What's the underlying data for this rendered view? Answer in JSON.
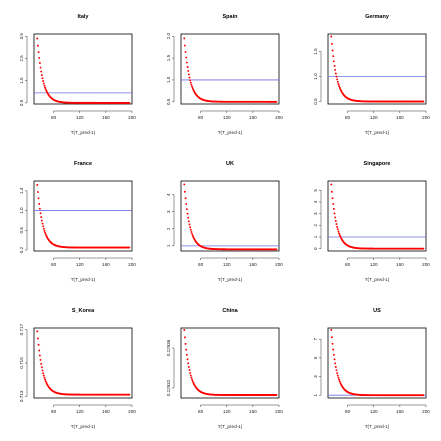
{
  "colors": {
    "points": "#ff0000",
    "hline": "#6f6fe8",
    "frame": "#000000"
  },
  "chart_data": [
    {
      "type": "scatter",
      "title": "Italy",
      "xlabel": "T(T_pred-1)",
      "xlim": [
        50,
        200
      ],
      "xticks": [
        80,
        120,
        160,
        200
      ],
      "ylim": [
        0.45,
        3.6
      ],
      "yticks": [
        0.5,
        1.5,
        2.5,
        3.5
      ],
      "ytick_labels": [
        "0.5",
        "1.5",
        "2.5",
        "3.5"
      ],
      "hline": 0.95,
      "x_start": 55,
      "x_end": 196,
      "y_start": 3.4,
      "y_end": 0.5,
      "decay": 0.12
    },
    {
      "type": "scatter",
      "title": "Spain",
      "xlabel": "T(T_pred-1)",
      "xlim": [
        50,
        200
      ],
      "xticks": [
        80,
        120,
        160,
        200
      ],
      "ylim": [
        0.45,
        2.05
      ],
      "yticks": [
        0.5,
        1.0,
        1.5,
        2.0
      ],
      "ytick_labels": [
        "0.5",
        "1.0",
        "1.5",
        "2.0"
      ],
      "hline": 1.0,
      "x_start": 55,
      "x_end": 196,
      "y_start": 1.95,
      "y_end": 0.5,
      "decay": 0.12
    },
    {
      "type": "scatter",
      "title": "Germany",
      "xlabel": "T(T_pred-1)",
      "xlim": [
        50,
        200
      ],
      "xticks": [
        80,
        120,
        160,
        200
      ],
      "ylim": [
        0.45,
        1.85
      ],
      "yticks": [
        0.5,
        1.0,
        1.5
      ],
      "ytick_labels": [
        "0.5",
        "1.0",
        "1.5"
      ],
      "hline": 1.0,
      "x_start": 55,
      "x_end": 196,
      "y_start": 1.8,
      "y_end": 0.5,
      "decay": 0.12
    },
    {
      "type": "scatter",
      "title": "France",
      "xlabel": "T(T_pred-1)",
      "xlim": [
        50,
        200
      ],
      "xticks": [
        80,
        120,
        160,
        200
      ],
      "ylim": [
        0.18,
        1.6
      ],
      "yticks": [
        0.2,
        0.6,
        1.0,
        1.4
      ],
      "ytick_labels": [
        "0.2",
        "0.6",
        "1.0",
        "1.4"
      ],
      "hline": 1.0,
      "x_start": 55,
      "x_end": 196,
      "y_start": 1.52,
      "y_end": 0.25,
      "decay": 0.12
    },
    {
      "type": "scatter",
      "title": "UK",
      "xlabel": "T(T_pred-1)",
      "xlim": [
        50,
        200
      ],
      "xticks": [
        80,
        120,
        160,
        200
      ],
      "ylim": [
        0.7,
        4.8
      ],
      "yticks": [
        1,
        2,
        3,
        4
      ],
      "ytick_labels": [
        "1",
        "2",
        "3",
        "4"
      ],
      "hline": 1.0,
      "x_start": 55,
      "x_end": 196,
      "y_start": 4.6,
      "y_end": 0.8,
      "decay": 0.12
    },
    {
      "type": "scatter",
      "title": "Singapore",
      "xlabel": "T(T_pred-1)",
      "xlim": [
        50,
        200
      ],
      "xticks": [
        80,
        120,
        160,
        200
      ],
      "ylim": [
        -0.2,
        5.8
      ],
      "yticks": [
        0,
        1,
        2,
        3,
        4,
        5
      ],
      "ytick_labels": [
        "0",
        "1",
        "2",
        "3",
        "4",
        "5"
      ],
      "hline": 1.0,
      "x_start": 55,
      "x_end": 196,
      "y_start": 5.5,
      "y_end": 0.0,
      "decay": 0.12
    },
    {
      "type": "scatter",
      "title": "S_Korea",
      "xlabel": "T(T_pred-1)",
      "xlim": [
        50,
        200
      ],
      "xticks": [
        80,
        120,
        160,
        200
      ],
      "ylim": [
        0.7129,
        0.7171
      ],
      "yticks": [
        0.713,
        0.715,
        0.717
      ],
      "ytick_labels": [
        "0.713",
        "0.715",
        "0.717"
      ],
      "x_start": 55,
      "x_end": 196,
      "y_start": 0.7169,
      "y_end": 0.7131,
      "decay": 0.12
    },
    {
      "type": "scatter",
      "title": "China",
      "xlabel": "T(T_pred-1)",
      "xlim": [
        50,
        200
      ],
      "xticks": [
        80,
        120,
        160,
        200
      ],
      "ylim": [
        0.22931,
        0.22938
      ],
      "yticks": [
        0.22932,
        0.22936
      ],
      "ytick_labels": [
        "0.22932",
        "0.22936"
      ],
      "x_start": 55,
      "x_end": 196,
      "y_start": 0.229378,
      "y_end": 0.229313,
      "decay": 0.12
    },
    {
      "type": "scatter",
      "title": "US",
      "xlabel": "T(T_pred-1)",
      "xlim": [
        50,
        200
      ],
      "xticks": [
        80,
        120,
        160,
        200
      ],
      "ylim": [
        0.7,
        8.2
      ],
      "yticks": [
        1,
        3,
        5,
        7
      ],
      "ytick_labels": [
        "1",
        "3",
        "5",
        "7"
      ],
      "hline": 1.0,
      "x_start": 55,
      "x_end": 196,
      "y_start": 8.0,
      "y_end": 1.0,
      "decay": 0.12
    }
  ]
}
